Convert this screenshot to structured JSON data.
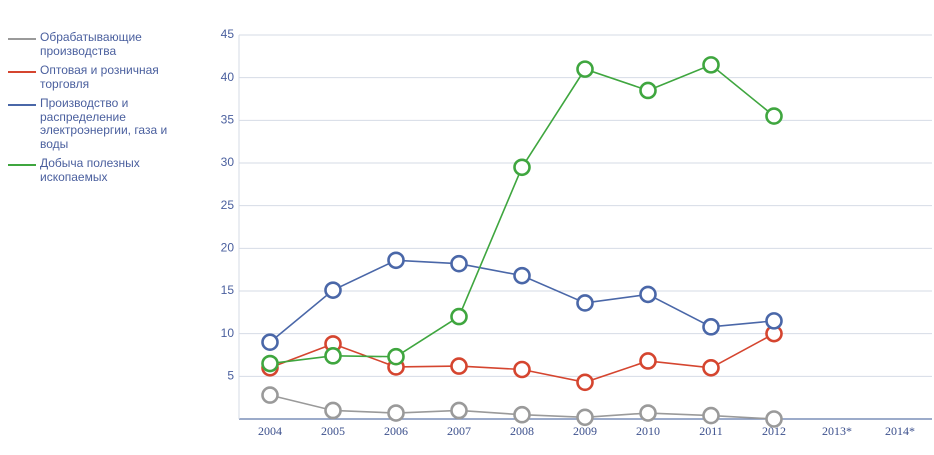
{
  "chart_data": {
    "type": "line",
    "categories": [
      "2004",
      "2005",
      "2006",
      "2007",
      "2008",
      "2009",
      "2010",
      "2011",
      "2012",
      "2013*",
      "2014*"
    ],
    "series": [
      {
        "name": "Обрабатывающие производства",
        "color": "#9a9a9a",
        "values": [
          2.8,
          1.0,
          0.7,
          1.0,
          0.5,
          0.2,
          0.7,
          0.4,
          0.0,
          null,
          null
        ]
      },
      {
        "name": "Оптовая и розничная торговля",
        "color": "#d5452f",
        "values": [
          6.0,
          8.8,
          6.1,
          6.2,
          5.8,
          4.3,
          6.8,
          6.0,
          10.0,
          null,
          null
        ]
      },
      {
        "name": "Производство и распределение электроэнергии, газа и воды",
        "color": "#4a67a8",
        "values": [
          9.0,
          15.1,
          18.6,
          18.2,
          16.8,
          13.6,
          14.6,
          10.8,
          11.5,
          null,
          null
        ]
      },
      {
        "name": "Добыча полезных ископаемых",
        "color": "#3fa63f",
        "values": [
          6.5,
          7.4,
          7.3,
          12.0,
          29.5,
          41.0,
          38.5,
          41.5,
          35.5,
          null,
          null
        ]
      }
    ],
    "ylim": [
      0,
      45
    ],
    "yticks": [
      5,
      10,
      15,
      20,
      25,
      30,
      35,
      40,
      45
    ],
    "grid": true,
    "legend": "left"
  }
}
